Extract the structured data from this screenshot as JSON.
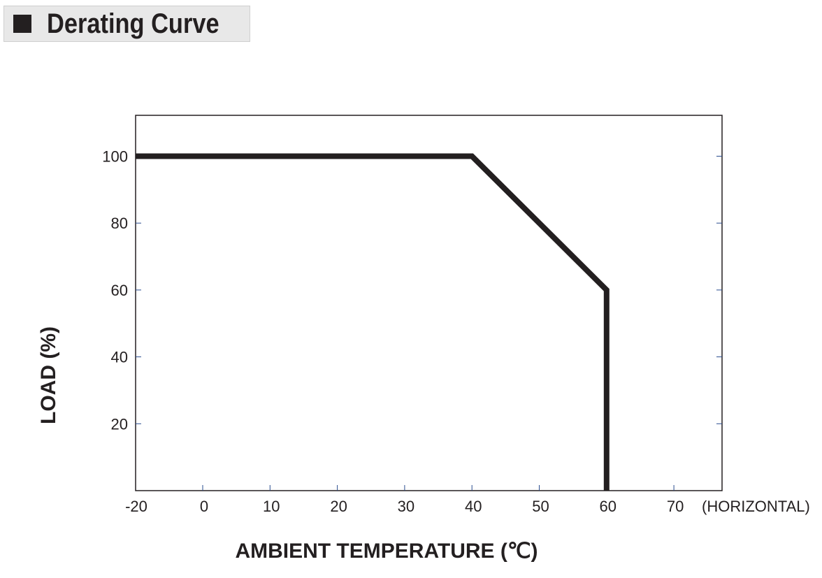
{
  "header": {
    "title": "Derating Curve"
  },
  "chart_data": {
    "type": "line",
    "title": "Derating Curve",
    "xlabel": "AMBIENT TEMPERATURE (℃)",
    "ylabel": "LOAD (%)",
    "x_note": "(HORIZONTAL)",
    "xlim": [
      -20,
      70
    ],
    "ylim": [
      0,
      112
    ],
    "x_ticks": [
      -20,
      0,
      10,
      20,
      30,
      40,
      50,
      60,
      70
    ],
    "x_tick_labels": [
      "-20",
      "0",
      "10",
      "20",
      "30",
      "40",
      "50",
      "60",
      "70"
    ],
    "y_ticks": [
      20,
      40,
      60,
      80,
      100
    ],
    "y_tick_labels": [
      "20",
      "40",
      "60",
      "80",
      "100"
    ],
    "grid": false,
    "series": [
      {
        "x": [
          -20,
          40,
          60,
          60
        ],
        "y": [
          100,
          100,
          60,
          0
        ],
        "color": "#231f20"
      }
    ]
  }
}
